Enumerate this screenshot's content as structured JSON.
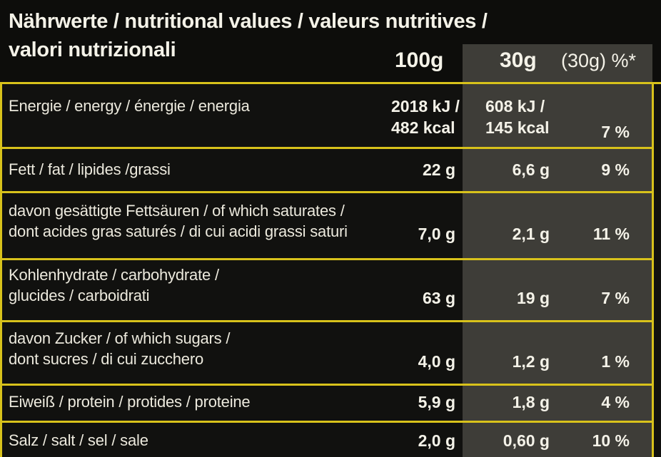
{
  "header": {
    "title_line1": "Nährwerte / nutritional values / valeurs nutritives /",
    "title_line2": "valori nutrizionali",
    "col_100g": "100g",
    "col_30g": "30g",
    "col_pct": "(30g) %*"
  },
  "rows": [
    {
      "label": [
        "Energie / energy / énergie / energia"
      ],
      "v100": [
        "2018 kJ /",
        "482 kcal"
      ],
      "v30": [
        "608 kJ /",
        "145 kcal"
      ],
      "pct": "7 %"
    },
    {
      "label": [
        "Fett / fat  / lipides /grassi"
      ],
      "v100": [
        "22 g"
      ],
      "v30": [
        "6,6 g"
      ],
      "pct": "9 %"
    },
    {
      "label": [
        "davon gesättigte Fettsäuren / of which saturates  /",
        "dont acides gras saturés / di cui acidi grassi saturi"
      ],
      "v100": [
        "7,0 g"
      ],
      "v30": [
        "2,1 g"
      ],
      "pct": "11 %"
    },
    {
      "label": [
        "Kohlenhydrate / carbohydrate /",
        "glucides / carboidrati"
      ],
      "v100": [
        "63 g"
      ],
      "v30": [
        "19 g"
      ],
      "pct": "7 %"
    },
    {
      "label": [
        "davon Zucker / of which sugars /",
        "dont sucres / di cui zucchero"
      ],
      "v100": [
        "4,0 g"
      ],
      "v30": [
        "1,2 g"
      ],
      "pct": "1 %"
    },
    {
      "label": [
        "Eiweiß / protein / protides / proteine"
      ],
      "v100": [
        "5,9 g"
      ],
      "v30": [
        "1,8 g"
      ],
      "pct": "4 %"
    },
    {
      "label": [
        "Salz / salt / sel / sale"
      ],
      "v100": [
        "2,0 g"
      ],
      "v30": [
        "0,60 g"
      ],
      "pct": "10 %"
    }
  ],
  "colors": {
    "accent_yellow": "#d8c21b",
    "background": "#11110f",
    "column_gray": "#3e3d38"
  }
}
